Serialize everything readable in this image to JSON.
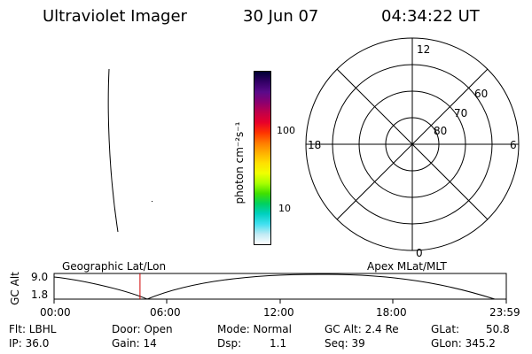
{
  "header": {
    "instrument": "Ultraviolet Imager",
    "date": "30 Jun 07",
    "time": "04:34:22 UT"
  },
  "colorbar": {
    "unit_label": "photon cm⁻²s⁻¹",
    "ticks": [
      "100",
      "10"
    ],
    "colors": [
      "#000033",
      "#330066",
      "#5a0a8a",
      "#8a0070",
      "#c0004a",
      "#e8002a",
      "#ff3300",
      "#ff7a00",
      "#ffb000",
      "#ffe000",
      "#f0ff00",
      "#a8ff00",
      "#40e000",
      "#00d060",
      "#00d0c0",
      "#40e0f0",
      "#c0eaf4",
      "#ffffff"
    ]
  },
  "polar": {
    "mlt_labels": {
      "top": "12",
      "left": "18",
      "right": "6",
      "bottom": "0"
    },
    "lat_labels": [
      "60",
      "70",
      "80"
    ]
  },
  "track": {
    "y_axis_label": "GC Alt",
    "y_ticks": [
      "9.0",
      "1.8"
    ],
    "left_title": "Geographic Lat/Lon",
    "right_title": "Apex MLat/MLT",
    "x_ticks": [
      "00:00",
      "06:00",
      "12:00",
      "18:00",
      "23:59"
    ],
    "current_time_fraction": 0.19
  },
  "info": {
    "flt": "Flt: LBHL",
    "ip": "IP: 36.0",
    "door": "Door: Open",
    "gain": "Gain: 14",
    "mode": "Mode: Normal",
    "dsp": "Dsp:",
    "dsp_val": "1.1",
    "gcalt": "GC Alt: 2.4 Re",
    "seq": "Seq: 39",
    "glat": "GLat:",
    "glat_val": "50.8",
    "glon": "GLon: 345.2"
  }
}
